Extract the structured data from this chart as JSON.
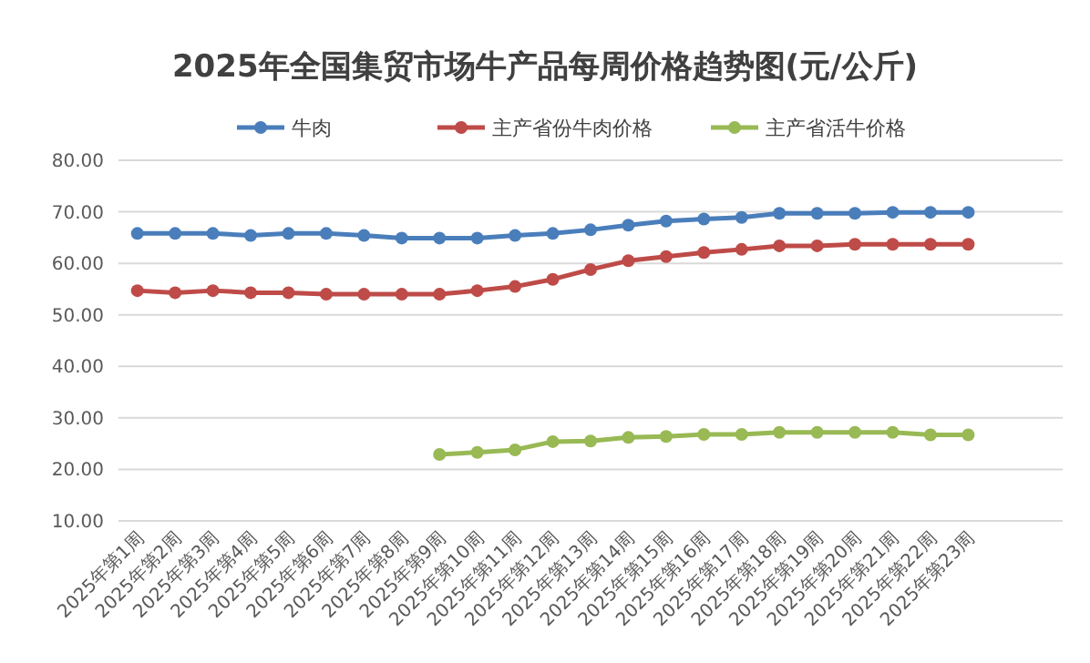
{
  "chart_data": {
    "type": "line",
    "title": "2025年全国集贸市场牛产品每周价格趋势图(元/公斤)",
    "categories": [
      "2025年第1周",
      "2025年第2周",
      "2025年第3周",
      "2025年第4周",
      "2025年第5周",
      "2025年第6周",
      "2025年第7周",
      "2025年第8周",
      "2025年第9周",
      "2025年第10周",
      "2025年第11周",
      "2025年第12周",
      "2025年第13周",
      "2025年第14周",
      "2025年第15周",
      "2025年第16周",
      "2025年第17周",
      "2025年第18周",
      "2025年第19周",
      "2025年第20周",
      "2025年第21周",
      "2025年第22周",
      "2025年第23周",
      null,
      null
    ],
    "series": [
      {
        "name": "牛肉",
        "color": "#4a7ebb",
        "values": [
          65.8,
          65.8,
          65.8,
          65.4,
          65.8,
          65.8,
          65.4,
          64.9,
          64.9,
          64.9,
          65.4,
          65.8,
          66.5,
          67.4,
          68.2,
          68.6,
          68.9,
          69.7,
          69.7,
          69.7,
          69.9,
          69.9,
          69.9,
          null,
          null
        ]
      },
      {
        "name": "主产省份牛肉价格",
        "color": "#be4b48",
        "values": [
          54.7,
          54.3,
          54.7,
          54.3,
          54.3,
          54.0,
          54.0,
          54.0,
          54.0,
          54.7,
          55.5,
          56.9,
          58.8,
          60.5,
          61.3,
          62.1,
          62.7,
          63.4,
          63.4,
          63.7,
          63.7,
          63.7,
          63.7,
          null,
          null
        ]
      },
      {
        "name": "主产省活牛价格",
        "color": "#98b954",
        "values": [
          null,
          null,
          null,
          null,
          null,
          null,
          null,
          null,
          22.9,
          23.3,
          23.8,
          25.4,
          25.5,
          26.2,
          26.4,
          26.8,
          26.8,
          27.2,
          27.2,
          27.2,
          27.2,
          26.7,
          26.7,
          null,
          null
        ]
      }
    ],
    "ylim": [
      10,
      80
    ],
    "yticks": [
      {
        "value": 10,
        "label": "10.00"
      },
      {
        "value": 20,
        "label": "20.00"
      },
      {
        "value": 30,
        "label": "30.00"
      },
      {
        "value": 40,
        "label": "40.00"
      },
      {
        "value": 50,
        "label": "50.00"
      },
      {
        "value": 60,
        "label": "60.00"
      },
      {
        "value": 70,
        "label": "70.00"
      },
      {
        "value": 80,
        "label": "80.00"
      }
    ],
    "grid": "y",
    "legend": "top",
    "marker": "circle",
    "line_style": "solid"
  }
}
